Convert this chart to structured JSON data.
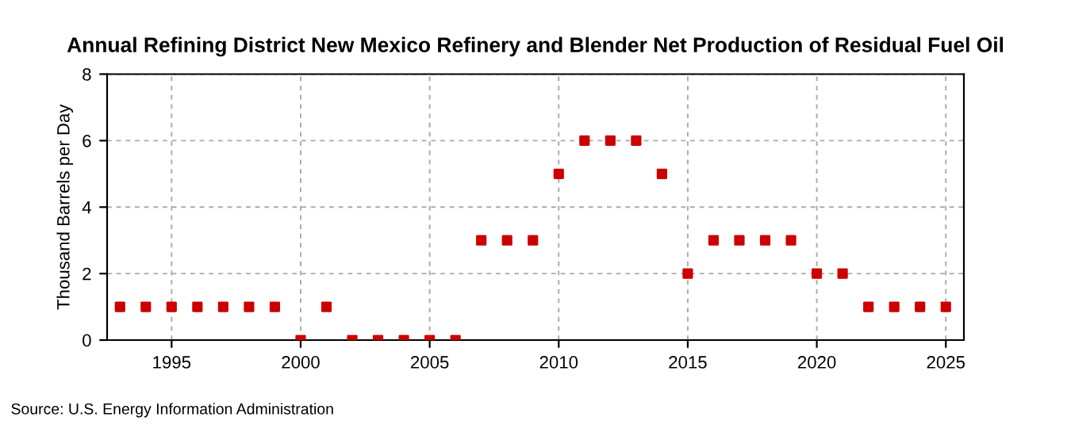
{
  "chart_data": {
    "type": "scatter",
    "title": "Annual Refining District New Mexico Refinery and Blender Net Production of Residual Fuel Oil",
    "ylabel": "Thousand Barrels per Day",
    "x": [
      1993,
      1994,
      1995,
      1996,
      1997,
      1998,
      1999,
      2000,
      2001,
      2002,
      2003,
      2004,
      2005,
      2006,
      2007,
      2008,
      2009,
      2010,
      2011,
      2012,
      2013,
      2014,
      2015,
      2016,
      2017,
      2018,
      2019,
      2020,
      2021,
      2022,
      2023,
      2024,
      2025
    ],
    "series": [
      {
        "color": "#cc0000",
        "values": [
          1,
          1,
          1,
          1,
          1,
          1,
          1,
          0,
          1,
          0,
          0,
          0,
          0,
          0,
          3,
          3,
          3,
          5,
          6,
          6,
          6,
          5,
          2,
          3,
          3,
          3,
          3,
          2,
          2,
          1,
          1,
          1,
          1
        ]
      }
    ],
    "xlim": [
      1992.5,
      2025.7
    ],
    "xticks": [
      1995,
      2000,
      2005,
      2010,
      2015,
      2020,
      2025
    ],
    "ylim": [
      0,
      8
    ],
    "yticks": [
      0,
      2,
      4,
      6,
      8
    ],
    "grid": true,
    "marker": "square",
    "annotations": [
      "Source: U.S. Energy Information Administration"
    ]
  }
}
